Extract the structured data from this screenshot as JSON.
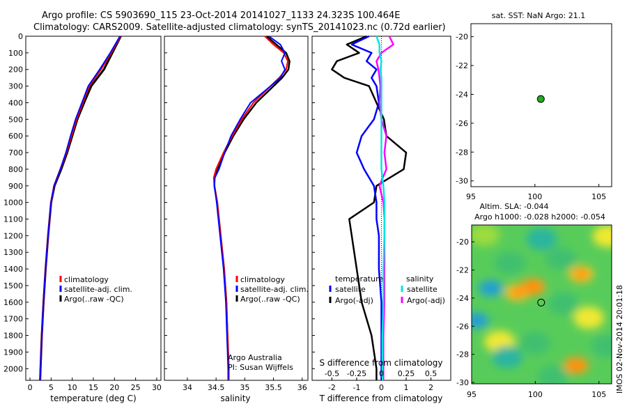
{
  "header": {
    "title_line1": "Argo profile: CS 5903690_115 23-Oct-2014 20141027_1133 24.323S 100.464E",
    "title_line2": "Climatology: CARS2009. Satellite-adjusted climatology: synTS_20141023.nc (0.72d earlier)"
  },
  "side_stamp": "IMOS 02-Nov-2014 20:01:18",
  "colors": {
    "clim": "#ff0000",
    "sat": "#0000ff",
    "argo": "#000000",
    "sal_sat": "#00e5e5",
    "sal_argo": "#ff00ff",
    "map_dot": "#22aa22"
  },
  "chart_data": [
    {
      "type": "line",
      "id": "temperature",
      "xlabel": "temperature (deg C)",
      "ylim": [
        0,
        2070
      ],
      "xlim": [
        -1,
        31
      ],
      "xticks": [
        "0",
        "5",
        "10",
        "15",
        "20",
        "25",
        "30"
      ],
      "yticks": [
        "0",
        "100",
        "200",
        "300",
        "400",
        "500",
        "600",
        "700",
        "800",
        "900",
        "1000",
        "1100",
        "1200",
        "1300",
        "1400",
        "1500",
        "1600",
        "1700",
        "1800",
        "1900",
        "2000"
      ],
      "legend": [
        "climatology",
        "satellite-adj. clim.",
        "Argo(..raw -QC)"
      ],
      "depth": [
        0,
        100,
        200,
        300,
        400,
        500,
        600,
        700,
        800,
        900,
        1000,
        1200,
        1400,
        1600,
        1800,
        2000,
        2070
      ],
      "series": [
        {
          "name": "climatology",
          "values": [
            21.5,
            19.5,
            17.5,
            14.5,
            12.8,
            11.2,
            10.0,
            8.8,
            7.4,
            5.8,
            5.0,
            4.3,
            3.7,
            3.2,
            2.8,
            2.5,
            2.4
          ]
        },
        {
          "name": "satellite-adj. clim.",
          "values": [
            21.4,
            19.2,
            16.8,
            14.0,
            12.5,
            11.0,
            9.8,
            8.6,
            7.2,
            5.7,
            5.0,
            4.3,
            3.7,
            3.2,
            2.8,
            2.5,
            2.4
          ]
        },
        {
          "name": "Argo(..raw -QC)",
          "values": [
            21.3,
            19.0,
            16.5,
            13.8,
            12.3,
            10.8,
            9.6,
            8.5,
            7.2,
            5.7,
            5.0,
            4.3,
            3.7,
            3.2,
            2.8,
            2.5,
            2.4
          ]
        }
      ]
    },
    {
      "type": "line",
      "id": "salinity",
      "xlabel": "salinity",
      "ylim": [
        0,
        2070
      ],
      "xlim": [
        33.6,
        36.1
      ],
      "xticks": [
        "34",
        "34.5",
        "35",
        "35.5",
        "36"
      ],
      "legend": [
        "climatology",
        "satellite-adj. clim.",
        "Argo(..raw -QC)"
      ],
      "annot": [
        "Argo Australia",
        "PI: Susan Wijffels"
      ],
      "depth": [
        0,
        50,
        100,
        150,
        200,
        250,
        300,
        400,
        500,
        600,
        700,
        800,
        850,
        900,
        1000,
        1200,
        1400,
        1600,
        1800,
        2000,
        2070
      ],
      "series": [
        {
          "name": "climatology",
          "values": [
            35.38,
            35.55,
            35.72,
            35.78,
            35.76,
            35.65,
            35.5,
            35.2,
            34.98,
            34.8,
            34.65,
            34.52,
            34.47,
            34.47,
            34.52,
            34.58,
            34.64,
            34.68,
            34.7,
            34.72,
            34.72
          ]
        },
        {
          "name": "satellite-adj. clim.",
          "values": [
            35.35,
            35.5,
            35.68,
            35.75,
            35.72,
            35.6,
            35.45,
            35.15,
            34.95,
            34.78,
            34.63,
            34.5,
            34.46,
            34.47,
            34.52,
            34.58,
            34.64,
            34.68,
            34.7,
            34.72,
            34.72
          ]
        },
        {
          "name": "Argo(..raw -QC)",
          "values": [
            35.42,
            35.62,
            35.7,
            35.64,
            35.7,
            35.62,
            35.45,
            35.1,
            34.92,
            34.76,
            34.65,
            34.55,
            34.48,
            34.47,
            34.51,
            34.57,
            34.63,
            34.67,
            34.69,
            34.71,
            34.71
          ]
        }
      ]
    },
    {
      "type": "line",
      "id": "difference",
      "xlabel": "T difference from climatology",
      "xlabel2": "S difference from climatology",
      "ylim": [
        0,
        2070
      ],
      "xlim": [
        -2.8,
        2.8
      ],
      "xticks": [
        "-2",
        "-1",
        "0",
        "1",
        "2"
      ],
      "sticks": [
        "-0.5",
        "-0.25",
        "0",
        "0.25",
        "0.5"
      ],
      "legend_titles": [
        "temperature",
        "salinity"
      ],
      "legend": [
        "satellite",
        "Argo(-adj)",
        "satellite",
        "Argo(-adj)"
      ],
      "depth": [
        0,
        50,
        100,
        150,
        200,
        250,
        300,
        400,
        500,
        600,
        700,
        800,
        900,
        1000,
        1100,
        1200,
        1400,
        1600,
        1800,
        2000,
        2070
      ],
      "series": [
        {
          "name": "T satellite",
          "values": [
            -0.5,
            -1.2,
            -0.4,
            -0.6,
            -0.2,
            -0.4,
            -0.2,
            -0.1,
            -0.3,
            -0.8,
            -1.0,
            -0.7,
            -0.3,
            -0.2,
            -0.2,
            -0.1,
            -0.1,
            0,
            0,
            0,
            0
          ]
        },
        {
          "name": "T Argo(-adj)",
          "values": [
            -0.6,
            -1.4,
            -0.9,
            -1.8,
            -2.0,
            -1.5,
            -0.5,
            -0.2,
            0.1,
            0.2,
            1.0,
            0.9,
            -0.2,
            -0.3,
            -1.3,
            -1.2,
            -1.0,
            -0.8,
            -0.4,
            -0.2,
            -0.2
          ]
        },
        {
          "name": "S satellite",
          "values": [
            -0.05,
            -0.02,
            -0.02,
            0,
            -0.01,
            0,
            0,
            0,
            0,
            0,
            0,
            0,
            0.02,
            0.03,
            0.03,
            0.03,
            0.02,
            0.02,
            0.01,
            0.01,
            0.01
          ]
        },
        {
          "name": "S Argo(-adj)",
          "values": [
            0.08,
            0.12,
            0.0,
            -0.05,
            -0.03,
            -0.02,
            -0.01,
            -0.02,
            0.0,
            0.05,
            0.03,
            0.05,
            -0.02,
            0.02,
            0.03,
            0.03,
            0.03,
            0.03,
            0.02,
            0.02,
            0.02
          ]
        }
      ]
    },
    {
      "type": "scatter",
      "id": "sst_map",
      "title": "sat. SST: NaN Argo: 21.1",
      "xlim": [
        95,
        106
      ],
      "ylim": [
        -30.4,
        -19.1
      ],
      "xticks": [
        "95",
        "100",
        "105"
      ],
      "yticks": [
        "-20",
        "-22",
        "-24",
        "-26",
        "-28",
        "-30"
      ],
      "points": [
        {
          "lon": 100.46,
          "lat": -24.32
        }
      ]
    },
    {
      "type": "heatmap",
      "id": "sla_map",
      "title": "Altim. SLA: -0.044",
      "subtitle": "Argo h1000: -0.028 h2000: -0.054",
      "xlim": [
        95,
        106
      ],
      "ylim": [
        -30.1,
        -18.8
      ],
      "xticks": [
        "95",
        "100",
        "105"
      ],
      "yticks": [
        "-20",
        "-22",
        "-24",
        "-26",
        "-28",
        "-30"
      ],
      "points": [
        {
          "lon": 100.46,
          "lat": -24.32
        }
      ],
      "blobs": [
        {
          "lon": 96.0,
          "lat": -19.5,
          "v": 0.0
        },
        {
          "lon": 98.0,
          "lat": -21.5,
          "v": -0.3
        },
        {
          "lon": 100.5,
          "lat": -19.8,
          "v": -0.6
        },
        {
          "lon": 96.5,
          "lat": -23.3,
          "v": -1.0
        },
        {
          "lon": 95.4,
          "lat": -25.6,
          "v": -1.0
        },
        {
          "lon": 98.6,
          "lat": -23.6,
          "v": 0.8
        },
        {
          "lon": 99.8,
          "lat": -23.2,
          "v": 0.9
        },
        {
          "lon": 103.6,
          "lat": -22.3,
          "v": 0.8
        },
        {
          "lon": 102.2,
          "lat": -24.4,
          "v": -0.4
        },
        {
          "lon": 104.2,
          "lat": -25.4,
          "v": 0.5
        },
        {
          "lon": 97.2,
          "lat": -27.1,
          "v": 0.5
        },
        {
          "lon": 97.8,
          "lat": -28.2,
          "v": -0.7
        },
        {
          "lon": 100.0,
          "lat": -27.2,
          "v": -0.3
        },
        {
          "lon": 103.2,
          "lat": -28.8,
          "v": 1.0
        },
        {
          "lon": 101.4,
          "lat": -29.6,
          "v": -0.3
        },
        {
          "lon": 105.7,
          "lat": -19.6,
          "v": 0.6
        },
        {
          "lon": 105.6,
          "lat": -27.4,
          "v": -0.4
        },
        {
          "lon": 102.0,
          "lat": -21.2,
          "v": -0.2
        }
      ]
    }
  ]
}
